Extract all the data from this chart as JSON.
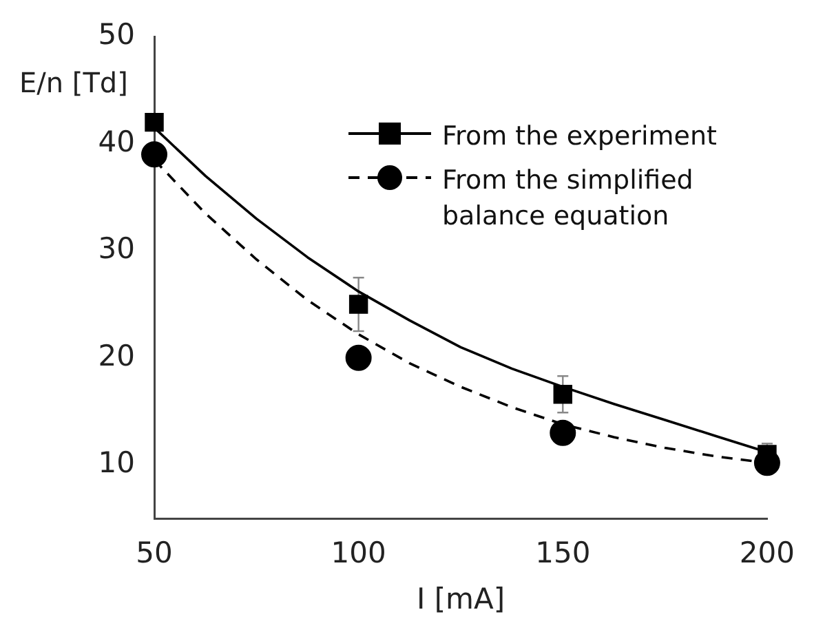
{
  "chart_data": {
    "type": "scatter",
    "xlabel": "I [mA]",
    "ylabel": "E/n [Td]",
    "xlim": [
      50,
      200
    ],
    "xticks": [
      50,
      100,
      150,
      200
    ],
    "ylim": [
      5,
      50
    ],
    "yticks": [
      10,
      20,
      30,
      40,
      50
    ],
    "grid": false,
    "legend": "top right",
    "series": [
      {
        "name": "From the experiment",
        "type": "scatter",
        "color": "#000000",
        "marker": "square",
        "line_style": "solid",
        "x": [
          50,
          100,
          150,
          200
        ],
        "values": [
          42,
          25,
          16.6,
          11
        ],
        "errors": [
          null,
          2.5,
          1.7,
          1
        ]
      },
      {
        "name": "From the simplified balance equation",
        "type": "scatter",
        "color": "#000000",
        "marker": "circle",
        "line_style": "dashed",
        "x": [
          50,
          100,
          150,
          200
        ],
        "values": [
          39,
          20,
          13,
          10.2
        ]
      },
      {
        "type": "line",
        "color": "#000000",
        "marker": "none",
        "line_style": "solid",
        "x": [
          50,
          62.5,
          75,
          87.5,
          100,
          112.5,
          125,
          137.5,
          150,
          162.5,
          175,
          187.5,
          200
        ],
        "values": [
          41.5,
          37,
          33,
          29.4,
          26.2,
          23.5,
          21,
          19,
          17.3,
          15.7,
          14.2,
          12.7,
          11.2
        ]
      },
      {
        "type": "line",
        "color": "#000000",
        "marker": "none",
        "line_style": "dashed",
        "x": [
          50,
          62.5,
          75,
          87.5,
          100,
          112.5,
          125,
          137.5,
          150,
          162.5,
          175,
          187.5,
          200
        ],
        "values": [
          38.5,
          33.5,
          29.2,
          25.4,
          22.2,
          19.5,
          17.3,
          15.4,
          13.8,
          12.6,
          11.6,
          10.8,
          10.2
        ]
      }
    ]
  }
}
